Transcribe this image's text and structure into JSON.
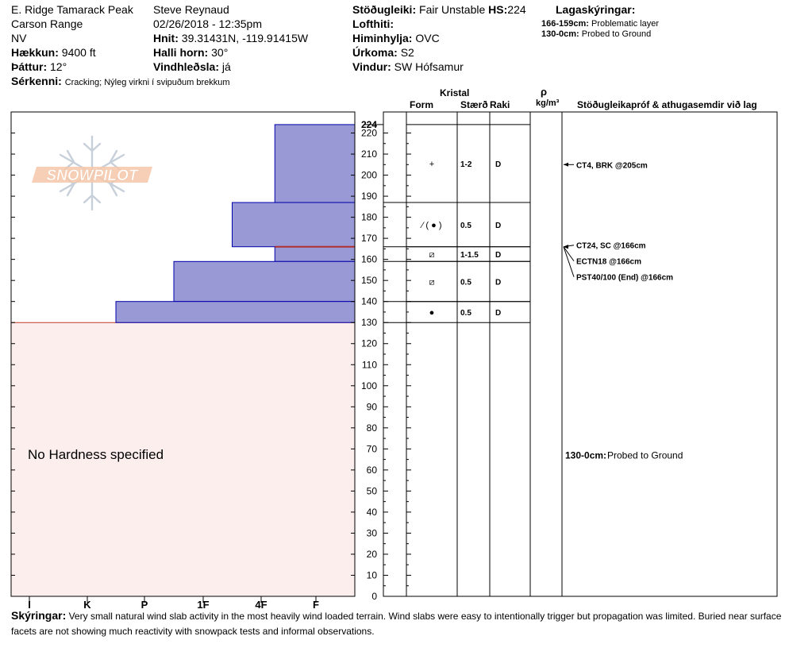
{
  "header": {
    "location": "E. Ridge Tamarack Peak",
    "range": "Carson Range",
    "state": "NV",
    "elevation_label": "Hækkun:",
    "elevation": "9400 ft",
    "aspect_label": "Þáttur:",
    "aspect": "12°",
    "observer": "Steve Reynaud",
    "datetime": "02/26/2018 - 12:35pm",
    "coords_label": "Hnit:",
    "coords": "39.31431N, -119.91415W",
    "slope_label": "Halli horn:",
    "slope": "30°",
    "wind_loading_label": "Vindhleðsla:",
    "wind_loading": "já",
    "stability_label": "Stöðugleiki:",
    "stability": "Fair Unstable",
    "hs_label": "HS:",
    "hs": "224",
    "air_temp_label": "Lofthiti:",
    "sky_label": "Himinhylja:",
    "sky": "OVC",
    "precip_label": "Úrkoma:",
    "precip": "S2",
    "wind_label": "Vindur:",
    "wind": "SW Hófsamur",
    "features_label": "Sérkenni:",
    "features": "Cracking;  Nýleg virkni í svipuðum brekkum"
  },
  "layer_legend": {
    "title": "Lagaskýringar:",
    "items": [
      {
        "range": "166-159cm:",
        "text": "Problematic layer"
      },
      {
        "range": "130-0cm:",
        "text": "Probed to Ground"
      }
    ]
  },
  "columns": {
    "crystal": "Kristal",
    "form": "Form",
    "size": "Stærð",
    "moisture": "Raki",
    "density_symbol": "ρ",
    "density_unit": "kg/m³",
    "tests": "Stöðugleikapróf & athugasemdir við lag"
  },
  "watermark": "SNOWPILOT",
  "no_hardness": "No Hardness specified",
  "notes_label": "Skýringar:",
  "notes": "Very small natural wind slab activity in the most heavily wind loaded terrain.  Wind slabs were easy to intentionally trigger but propagation was limited.  Buried near surface facets are not showing much reactivity with snowpack tests and informal observations.",
  "chart_data": {
    "type": "snow-profile",
    "hs_cm": 224,
    "depth_axis": {
      "min": 0,
      "max": 224,
      "major_step": 10,
      "top_label": "224"
    },
    "hardness_axis": {
      "ticks": [
        "I",
        "K",
        "P",
        "1F",
        "4F",
        "F"
      ]
    },
    "hardness_layers": [
      {
        "top": 224,
        "bottom": 187,
        "extent": 0.75
      },
      {
        "top": 187,
        "bottom": 166,
        "extent": 1.5
      },
      {
        "top": 166,
        "bottom": 159,
        "extent": 0.75
      },
      {
        "top": 159,
        "bottom": 140,
        "extent": 2.5
      },
      {
        "top": 140,
        "bottom": 130,
        "extent": 3.5
      }
    ],
    "problematic_layer_cm": 166,
    "probed_to_ground": {
      "top": 130,
      "bottom": 0
    },
    "crystal_layers": [
      {
        "top": 224,
        "bottom": 187,
        "form": "+",
        "size": "1-2",
        "moisture": "D"
      },
      {
        "top": 187,
        "bottom": 166,
        "form": "⁄ ( ● )",
        "size": "0.5",
        "moisture": "D"
      },
      {
        "top": 166,
        "bottom": 159,
        "form": "⧄",
        "size": "1-1.5",
        "moisture": "D"
      },
      {
        "top": 159,
        "bottom": 140,
        "form": "⧄",
        "size": "0.5",
        "moisture": "D"
      },
      {
        "top": 140,
        "bottom": 130,
        "form": "●",
        "size": "0.5",
        "moisture": "D"
      }
    ],
    "tests": [
      {
        "depth": 205,
        "text": "CT4, BRK @205cm"
      },
      {
        "depth": 166,
        "text": "CT24, SC @166cm"
      },
      {
        "depth": 166,
        "text": "ECTN18 @166cm"
      },
      {
        "depth": 166,
        "text": "PST40/100 (End) @166cm"
      }
    ],
    "comments": [
      {
        "depth": 65,
        "range": "130-0cm:",
        "text": "Probed to Ground"
      }
    ]
  }
}
